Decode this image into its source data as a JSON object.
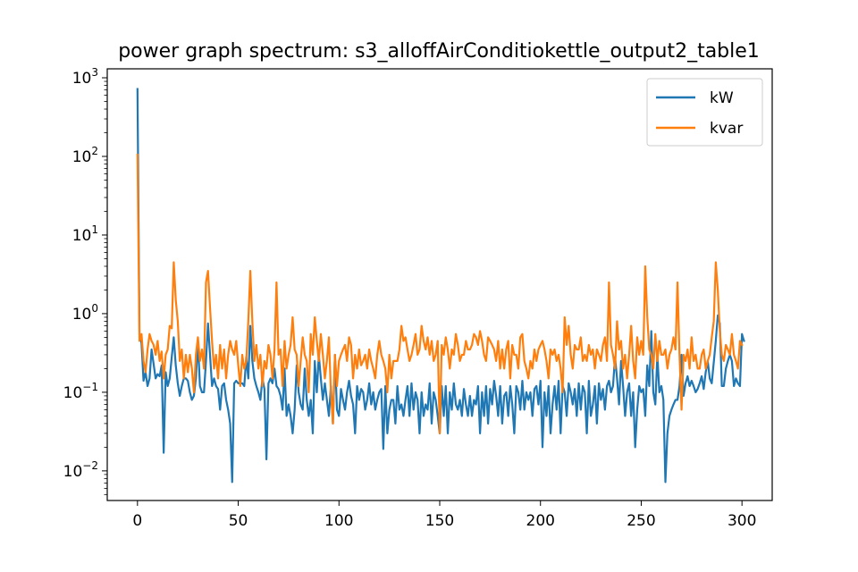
{
  "chart_data": {
    "type": "line",
    "title": "power graph spectrum: s3_alloffAirConditiokettle_output2_table1",
    "xlabel": "",
    "ylabel": "",
    "xlim": [
      -15,
      315
    ],
    "ylim": [
      0.0042,
      1300
    ],
    "yscale": "log",
    "x_ticks": [
      0,
      50,
      100,
      150,
      200,
      250,
      300
    ],
    "y_ticks": [
      {
        "value": 0.01,
        "base": "10",
        "exp": "−2"
      },
      {
        "value": 0.1,
        "base": "10",
        "exp": "−1"
      },
      {
        "value": 1,
        "base": "10",
        "exp": "0"
      },
      {
        "value": 10,
        "base": "10",
        "exp": "1"
      },
      {
        "value": 100,
        "base": "10",
        "exp": "2"
      },
      {
        "value": 1000,
        "base": "10",
        "exp": "3"
      }
    ],
    "grid": false,
    "legend_position": "top-right",
    "series": [
      {
        "name": "kW",
        "color": "#1f77b4",
        "x_start": 0,
        "x_step": 1,
        "values": [
          720,
          0.55,
          0.42,
          0.14,
          0.18,
          0.12,
          0.15,
          0.35,
          0.23,
          0.15,
          0.17,
          0.16,
          0.22,
          0.017,
          0.18,
          0.12,
          0.15,
          0.28,
          0.5,
          0.22,
          0.13,
          0.09,
          0.12,
          0.15,
          0.15,
          0.14,
          0.1,
          0.08,
          0.09,
          0.15,
          0.45,
          0.12,
          0.1,
          0.1,
          0.25,
          0.75,
          0.3,
          0.12,
          0.15,
          0.12,
          0.11,
          0.06,
          0.12,
          0.13,
          0.08,
          0.06,
          0.04,
          0.0072,
          0.13,
          0.14,
          0.13,
          0.13,
          0.13,
          0.12,
          0.28,
          0.15,
          0.7,
          0.25,
          0.15,
          0.12,
          0.1,
          0.08,
          0.15,
          0.11,
          0.014,
          0.13,
          0.15,
          0.13,
          0.2,
          0.12,
          0.11,
          0.09,
          0.06,
          0.2,
          0.05,
          0.07,
          0.05,
          0.03,
          0.06,
          0.22,
          0.1,
          0.07,
          0.06,
          0.2,
          0.08,
          0.05,
          0.08,
          0.03,
          0.25,
          0.1,
          0.3,
          0.15,
          0.08,
          0.13,
          0.08,
          0.05,
          0.12,
          0.04,
          0.3,
          0.06,
          0.05,
          0.11,
          0.08,
          0.06,
          0.1,
          0.14,
          0.09,
          0.07,
          0.03,
          0.12,
          0.08,
          0.11,
          0.1,
          0.06,
          0.08,
          0.13,
          0.07,
          0.1,
          0.06,
          0.08,
          0.1,
          0.11,
          0.019,
          0.12,
          0.03,
          0.06,
          0.08,
          0.08,
          0.04,
          0.12,
          0.06,
          0.07,
          0.05,
          0.08,
          0.12,
          0.05,
          0.13,
          0.06,
          0.1,
          0.08,
          0.03,
          0.1,
          0.05,
          0.07,
          0.06,
          0.13,
          0.04,
          0.1,
          0.08,
          0.05,
          0.03,
          0.12,
          0.05,
          0.12,
          0.03,
          0.1,
          0.06,
          0.13,
          0.07,
          0.06,
          0.08,
          0.05,
          0.11,
          0.07,
          0.05,
          0.09,
          0.05,
          0.08,
          0.07,
          0.12,
          0.03,
          0.1,
          0.05,
          0.12,
          0.04,
          0.11,
          0.07,
          0.14,
          0.09,
          0.05,
          0.12,
          0.04,
          0.09,
          0.1,
          0.05,
          0.12,
          0.07,
          0.03,
          0.12,
          0.1,
          0.06,
          0.14,
          0.06,
          0.1,
          0.08,
          0.1,
          0.05,
          0.11,
          0.12,
          0.07,
          0.14,
          0.02,
          0.1,
          0.05,
          0.12,
          0.03,
          0.07,
          0.12,
          0.06,
          0.14,
          0.03,
          0.12,
          0.1,
          0.05,
          0.13,
          0.1,
          0.07,
          0.11,
          0.05,
          0.13,
          0.06,
          0.12,
          0.1,
          0.03,
          0.14,
          0.05,
          0.07,
          0.12,
          0.04,
          0.13,
          0.08,
          0.11,
          0.06,
          0.12,
          0.14,
          0.1,
          0.12,
          0.28,
          0.15,
          0.07,
          0.25,
          0.12,
          0.05,
          0.1,
          0.13,
          0.05,
          0.1,
          0.02,
          0.06,
          0.12,
          0.1,
          0.11,
          0.05,
          0.22,
          0.12,
          0.6,
          0.1,
          0.07,
          0.3,
          0.1,
          0.12,
          0.08,
          0.0072,
          0.03,
          0.05,
          0.06,
          0.07,
          0.08,
          0.08,
          0.12,
          0.3,
          0.09,
          0.13,
          0.16,
          0.12,
          0.14,
          0.12,
          0.1,
          0.11,
          0.13,
          0.16,
          0.11,
          0.18,
          0.25,
          0.15,
          0.13,
          0.24,
          0.45,
          0.95,
          0.75,
          0.12,
          0.12,
          0.2,
          0.25,
          0.3,
          0.25,
          0.12,
          0.15,
          0.13,
          0.12,
          0.55,
          0.45
        ]
      },
      {
        "name": "kvar",
        "color": "#ff7f0e",
        "x_start": 0,
        "x_step": 1,
        "values": [
          105,
          0.45,
          0.55,
          0.25,
          0.18,
          0.35,
          0.55,
          0.45,
          0.4,
          0.3,
          0.45,
          0.25,
          0.33,
          0.15,
          0.3,
          0.35,
          0.7,
          0.65,
          4.5,
          1.5,
          0.8,
          0.25,
          0.35,
          0.15,
          0.3,
          0.18,
          0.3,
          0.2,
          0.1,
          0.3,
          0.5,
          0.25,
          0.35,
          0.2,
          2.5,
          3.5,
          1.2,
          0.45,
          0.2,
          0.3,
          0.15,
          0.4,
          0.2,
          0.35,
          0.15,
          0.3,
          0.45,
          0.35,
          0.3,
          0.45,
          0.22,
          0.12,
          0.3,
          0.2,
          0.25,
          0.8,
          3.5,
          0.8,
          0.25,
          0.4,
          0.2,
          0.3,
          0.12,
          0.25,
          0.2,
          0.4,
          0.3,
          0.15,
          0.35,
          2.5,
          0.3,
          0.35,
          0.12,
          0.45,
          0.2,
          0.3,
          0.4,
          0.9,
          0.35,
          0.3,
          0.12,
          0.25,
          0.5,
          0.3,
          0.25,
          0.1,
          0.55,
          0.3,
          0.9,
          0.45,
          0.25,
          0.55,
          0.3,
          0.15,
          0.25,
          0.5,
          0.1,
          0.04,
          0.3,
          0.12,
          0.25,
          0.3,
          0.35,
          0.4,
          0.25,
          0.5,
          0.4,
          0.15,
          0.3,
          0.2,
          0.35,
          0.22,
          0.25,
          0.3,
          0.2,
          0.35,
          0.25,
          0.2,
          0.15,
          0.3,
          0.45,
          0.3,
          0.25,
          0.2,
          0.1,
          0.3,
          0.15,
          0.25,
          0.25,
          0.25,
          0.35,
          0.7,
          0.45,
          0.5,
          0.35,
          0.25,
          0.3,
          0.4,
          0.55,
          0.3,
          0.35,
          0.7,
          0.45,
          0.35,
          0.5,
          0.3,
          0.45,
          0.25,
          0.3,
          0.45,
          0.03,
          0.4,
          0.3,
          0.5,
          0.35,
          0.2,
          0.35,
          0.3,
          0.55,
          0.4,
          0.25,
          0.3,
          0.3,
          0.45,
          0.35,
          0.35,
          0.4,
          0.55,
          0.5,
          0.4,
          0.6,
          0.45,
          0.3,
          0.25,
          0.5,
          0.45,
          0.4,
          0.35,
          0.25,
          0.45,
          0.2,
          0.35,
          0.2,
          0.35,
          0.45,
          0.15,
          0.4,
          0.3,
          0.3,
          0.2,
          0.5,
          0.55,
          0.25,
          0.2,
          0.15,
          0.25,
          0.2,
          0.35,
          0.25,
          0.35,
          0.4,
          0.45,
          0.35,
          0.25,
          0.15,
          0.35,
          0.3,
          0.35,
          0.25,
          0.3,
          0.2,
          0.1,
          0.9,
          0.4,
          0.7,
          0.3,
          0.2,
          0.4,
          0.35,
          0.35,
          0.5,
          0.25,
          0.3,
          0.25,
          0.4,
          0.3,
          0.35,
          0.2,
          0.35,
          0.3,
          0.25,
          0.4,
          0.5,
          0.25,
          2.5,
          0.4,
          0.3,
          0.2,
          0.8,
          0.35,
          0.45,
          0.2,
          0.3,
          0.15,
          0.3,
          0.7,
          0.25,
          0.15,
          0.5,
          0.3,
          0.45,
          0.3,
          4,
          0.9,
          0.35,
          0.3,
          0.2,
          0.55,
          0.25,
          0.45,
          0.3,
          0.3,
          0.35,
          0.2,
          0.3,
          0.35,
          0.5,
          0.35,
          2.5,
          0.3,
          0.06,
          0.3,
          0.25,
          0.35,
          0.2,
          0.5,
          0.25,
          0.3,
          0.2,
          0.2,
          0.3,
          0.35,
          0.2,
          0.25,
          0.3,
          0.5,
          0.8,
          4.5,
          2,
          0.6,
          0.3,
          0.25,
          0.4,
          0.35,
          0.3,
          0.55,
          0.3,
          0.25,
          0.2,
          0.45,
          0.4
        ]
      }
    ]
  }
}
